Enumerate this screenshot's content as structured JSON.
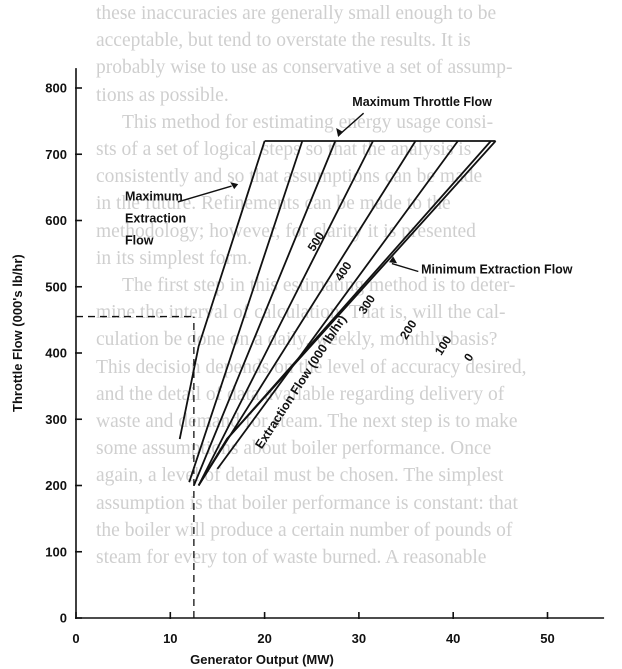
{
  "background_text": [
    "these inaccuracies are generally small enough to be",
    "acceptable, but tend to overstate the results. It is",
    "probably wise to use as conservative a set of assump-",
    "tions as possible.",
    "This method for estimating energy usage consi-",
    "sts of a set of logical steps so that the analysis is",
    "consistently and so that assumptions can be made",
    "in the future. Refinements can be made to the",
    "methodology; however, for clarity it is presented",
    "in its simplest form.",
    "The first step in this estimating method is to deter-",
    "mine the interval of calculation. That is, will the cal-",
    "culation be done on a daily, weekly, monthly basis?",
    "This decision depends on the level of accuracy desired,",
    "and the detail of data available regarding delivery of",
    "waste and demand for steam. The next step is to make",
    "some assumptions about boiler performance. Once",
    "again, a level of detail must be chosen. The simplest",
    "assumption is that boiler performance is constant: that",
    "the boiler will produce a certain number of pounds of",
    "steam for every ton of waste burned. A reasonable"
  ],
  "background_text_indented": [
    4,
    10
  ],
  "chart_data": {
    "type": "line",
    "xlabel": "Generator Output (MW)",
    "ylabel": "Throttle Flow (000's lb/hr)",
    "xlim": [
      0,
      56
    ],
    "ylim": [
      0,
      830
    ],
    "xticks": [
      "0",
      "10",
      "20",
      "30",
      "40",
      "50"
    ],
    "yticks": [
      "0",
      "100",
      "200",
      "300",
      "400",
      "500",
      "600",
      "700",
      "800"
    ],
    "series": [
      {
        "name": "0",
        "points": [
          [
            16.0,
            270
          ],
          [
            44.0,
            720
          ]
        ]
      },
      {
        "name": "100",
        "points": [
          [
            15.0,
            225
          ],
          [
            40.5,
            720
          ]
        ]
      },
      {
        "name": "200",
        "points": [
          [
            13.0,
            200
          ],
          [
            36.0,
            720
          ]
        ]
      },
      {
        "name": "300",
        "points": [
          [
            13.0,
            200
          ],
          [
            31.5,
            720
          ]
        ]
      },
      {
        "name": "400",
        "points": [
          [
            12.5,
            200
          ],
          [
            27.5,
            720
          ]
        ]
      },
      {
        "name": "500",
        "points": [
          [
            12.0,
            205
          ],
          [
            24.0,
            720
          ]
        ]
      },
      {
        "name": "Maximum Throttle Flow",
        "points": [
          [
            20.0,
            720
          ],
          [
            44.5,
            720
          ]
        ]
      },
      {
        "name": "Minimum Extraction Flow",
        "points": [
          [
            13.0,
            200
          ],
          [
            16.0,
            270
          ],
          [
            44.5,
            720
          ]
        ]
      },
      {
        "name": "Maximum Extraction Flow",
        "points": [
          [
            11.0,
            270
          ],
          [
            13.0,
            410
          ],
          [
            20.0,
            720
          ]
        ]
      }
    ],
    "reference_lines": [
      {
        "type": "horizontal",
        "y": 455,
        "x_from": 0,
        "x_to": 12.5
      },
      {
        "type": "vertical",
        "x": 12.5,
        "y_from": 0,
        "y_to": 455
      }
    ],
    "annotations": {
      "max_throttle": "Maximum Throttle Flow",
      "max_extraction": [
        "Maximum",
        "Extraction",
        "Flow"
      ],
      "min_extraction": "Minimum Extraction Flow",
      "extraction_flow": "Extraction Flow (000 lb/hr)"
    },
    "colors": {
      "line": "#111111",
      "bgtext": "#cfcfcf"
    }
  }
}
